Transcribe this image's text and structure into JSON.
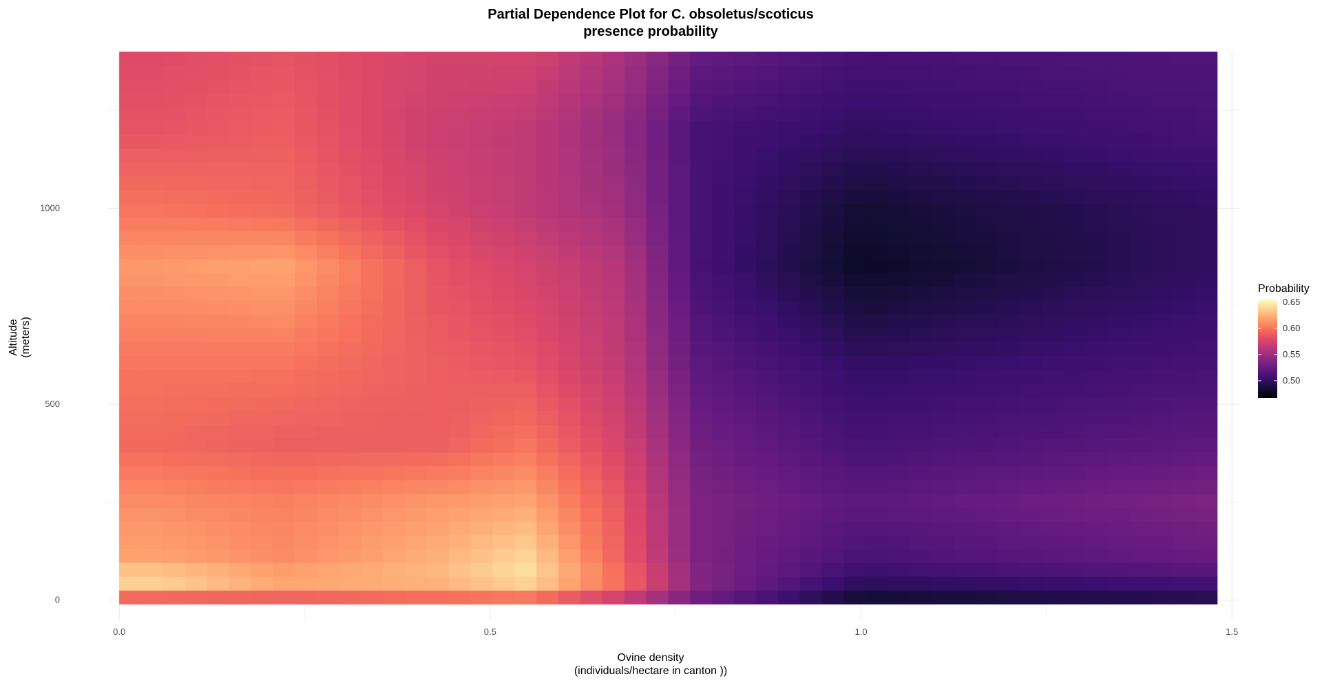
{
  "chart_data": {
    "type": "heatmap",
    "title_line1": "Partial Dependence Plot for C. obsoletus/scoticus",
    "title_line2": "presence probability",
    "xlabel_line1": "Ovine density",
    "xlabel_line2": "(individuals/hectare in canton ))",
    "ylabel_line1": "Altitude",
    "ylabel_line2": "(meters)",
    "xlim": [
      -0.015,
      1.51
    ],
    "ylim": [
      -50,
      1400
    ],
    "x_range": [
      0,
      1.48
    ],
    "y_range": [
      -10,
      1400
    ],
    "x_ticks": [
      0.0,
      0.5,
      1.0,
      1.5
    ],
    "x_tick_labels": [
      "0.0",
      "0.5",
      "1.0",
      "1.5"
    ],
    "y_ticks": [
      0,
      500,
      1000
    ],
    "y_tick_labels": [
      "0",
      "500",
      "1000"
    ],
    "legend": {
      "title": "Probability",
      "position": "right",
      "ticks": [
        0.5,
        0.55,
        0.6,
        0.65
      ],
      "tick_labels": [
        "0.50",
        "0.55",
        "0.60",
        "0.65"
      ],
      "min": 0.467,
      "max": 0.655
    },
    "colormap": "magma",
    "x_breakpoints": [
      0.05,
      0.22,
      0.43,
      0.55,
      0.68,
      0.78,
      1.0,
      1.48
    ],
    "y_breakpoints": [
      -10,
      50,
      100,
      250,
      400,
      600,
      850,
      1000,
      1200,
      1400
    ],
    "values": [
      [
        0.575,
        0.58,
        0.585,
        0.585,
        0.56,
        0.525,
        0.48,
        0.49
      ],
      [
        0.645,
        0.625,
        0.63,
        0.645,
        0.6,
        0.54,
        0.5,
        0.51
      ],
      [
        0.62,
        0.61,
        0.625,
        0.64,
        0.59,
        0.535,
        0.51,
        0.525
      ],
      [
        0.61,
        0.605,
        0.615,
        0.62,
        0.585,
        0.535,
        0.52,
        0.535
      ],
      [
        0.595,
        0.59,
        0.59,
        0.6,
        0.575,
        0.53,
        0.51,
        0.52
      ],
      [
        0.6,
        0.6,
        0.59,
        0.585,
        0.565,
        0.52,
        0.5,
        0.51
      ],
      [
        0.615,
        0.62,
        0.585,
        0.575,
        0.56,
        0.51,
        0.48,
        0.5
      ],
      [
        0.6,
        0.595,
        0.575,
        0.565,
        0.55,
        0.51,
        0.485,
        0.5
      ],
      [
        0.585,
        0.59,
        0.57,
        0.565,
        0.545,
        0.51,
        0.5,
        0.51
      ],
      [
        0.58,
        0.585,
        0.575,
        0.575,
        0.555,
        0.525,
        0.51,
        0.515
      ]
    ]
  }
}
